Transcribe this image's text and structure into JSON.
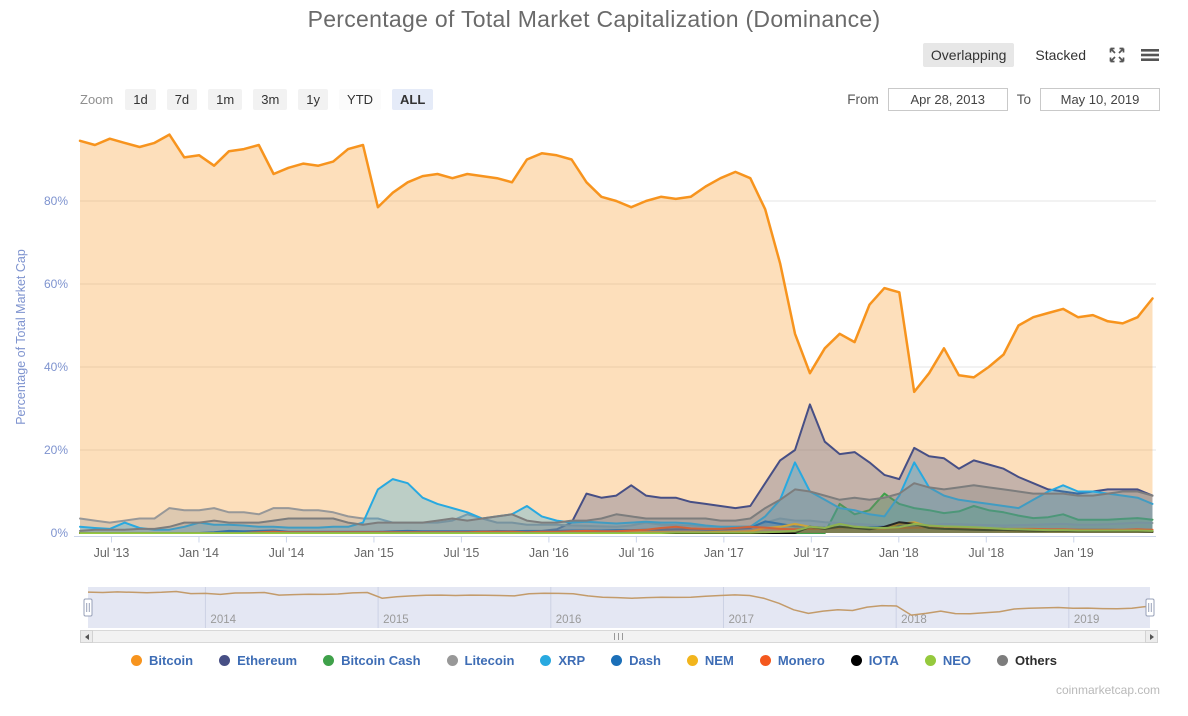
{
  "title": "Percentage of Total Market Capitalization (Dominance)",
  "view_toggle": {
    "overlapping": "Overlapping",
    "stacked": "Stacked",
    "selected": "Overlapping"
  },
  "zoom_bar": {
    "label": "Zoom",
    "buttons": [
      {
        "label": "1d",
        "variant": "default"
      },
      {
        "label": "7d",
        "variant": "default"
      },
      {
        "label": "1m",
        "variant": "default"
      },
      {
        "label": "3m",
        "variant": "default"
      },
      {
        "label": "1y",
        "variant": "default"
      },
      {
        "label": "YTD",
        "variant": "plain"
      },
      {
        "label": "ALL",
        "variant": "active"
      }
    ]
  },
  "date_range": {
    "from_label": "From",
    "from_value": "Apr 28, 2013",
    "to_label": "To",
    "to_value": "May 10, 2019"
  },
  "y_axis": {
    "title": "Percentage of Total Market Cap",
    "color": "#7e93cf",
    "ticks": [
      {
        "label": "0%",
        "v": 0
      },
      {
        "label": "20%",
        "v": 20
      },
      {
        "label": "40%",
        "v": 40
      },
      {
        "label": "60%",
        "v": 60
      },
      {
        "label": "80%",
        "v": 80
      }
    ]
  },
  "x_axis": {
    "color": "#666666",
    "ticks": [
      {
        "label": "Jul '13",
        "t": 2013.5
      },
      {
        "label": "Jan '14",
        "t": 2014.0
      },
      {
        "label": "Jul '14",
        "t": 2014.5
      },
      {
        "label": "Jan '15",
        "t": 2015.0
      },
      {
        "label": "Jul '15",
        "t": 2015.5
      },
      {
        "label": "Jan '16",
        "t": 2016.0
      },
      {
        "label": "Jul '16",
        "t": 2016.5
      },
      {
        "label": "Jan '17",
        "t": 2017.0
      },
      {
        "label": "Jul '17",
        "t": 2017.5
      },
      {
        "label": "Jan '18",
        "t": 2018.0
      },
      {
        "label": "Jul '18",
        "t": 2018.5
      },
      {
        "label": "Jan '19",
        "t": 2019.0
      }
    ]
  },
  "navigator": {
    "line_color": "#c39b6a",
    "bg_color": "#e4e7f3",
    "years": [
      {
        "label": "2014",
        "t": 2014
      },
      {
        "label": "2015",
        "t": 2015
      },
      {
        "label": "2016",
        "t": 2016
      },
      {
        "label": "2017",
        "t": 2017
      },
      {
        "label": "2018",
        "t": 2018
      },
      {
        "label": "2019",
        "t": 2019
      }
    ]
  },
  "legend": {
    "text_color": "#3e6db5"
  },
  "watermark": "coinmarketcap.com",
  "chart_data": {
    "type": "area",
    "title": "Percentage of Total Market Capitalization (Dominance)",
    "ylabel": "Percentage of Total Market Cap",
    "ylim": [
      0,
      100
    ],
    "grid": true,
    "legend_position": "bottom",
    "x_start": 2013.32,
    "x_step": 0.08514,
    "x_unit": "decimal_year_monthly_samples",
    "fill_opacity": 0.3,
    "series": [
      {
        "name": "Bitcoin",
        "color": "#f7941e",
        "values": [
          94.5,
          93.5,
          95,
          94,
          93,
          94,
          96,
          90.5,
          91,
          88.5,
          92,
          92.5,
          93.5,
          86.5,
          88,
          89,
          88.5,
          89.5,
          92.5,
          93.5,
          78.5,
          82,
          84.5,
          86,
          86.5,
          85.5,
          86.5,
          86,
          85.5,
          84.5,
          90,
          91.5,
          91,
          90,
          84.5,
          81,
          80,
          78.5,
          80,
          81,
          80.5,
          81,
          83.5,
          85.5,
          87,
          85.5,
          78,
          65,
          48,
          38.5,
          44.5,
          48,
          46,
          55,
          59,
          58,
          34,
          38.5,
          44.5,
          38,
          37.5,
          40,
          43,
          50,
          52,
          53,
          54,
          52,
          52.5,
          51,
          50.5,
          52,
          56.5
        ]
      },
      {
        "name": "Ethereum",
        "color": "#474f85",
        "values": [
          0,
          0,
          0,
          0,
          0,
          0,
          0,
          0,
          0,
          0,
          0,
          0,
          0,
          0,
          0,
          0,
          0,
          0,
          0,
          0,
          0,
          0,
          0,
          0,
          0,
          0,
          0,
          0.3,
          0.5,
          0.4,
          0.5,
          0.5,
          0.9,
          2.5,
          9.5,
          8.5,
          9,
          11.5,
          9,
          8.5,
          8.5,
          7.5,
          7,
          6.5,
          6,
          6.5,
          12,
          17.5,
          20,
          31,
          22,
          19,
          19.5,
          17,
          14,
          13,
          20.5,
          18.5,
          18,
          15.5,
          17.5,
          16.5,
          15.5,
          13.5,
          12,
          10.5,
          10,
          9.5,
          10,
          10.5,
          10.5,
          10.5,
          9
        ]
      },
      {
        "name": "Bitcoin Cash",
        "color": "#3fa14a",
        "values": [
          0,
          0,
          0,
          0,
          0,
          0,
          0,
          0,
          0,
          0,
          0,
          0,
          0,
          0,
          0,
          0,
          0,
          0,
          0,
          0,
          0,
          0,
          0,
          0,
          0,
          0,
          0,
          0,
          0,
          0,
          0,
          0,
          0,
          0,
          0,
          0,
          0,
          0,
          0,
          0,
          0,
          0,
          0,
          0,
          0,
          0,
          0,
          0,
          0,
          0,
          0,
          7,
          4.5,
          5.5,
          9.5,
          7,
          6,
          5.5,
          4.8,
          5.2,
          6.5,
          5.5,
          5,
          4.2,
          3.6,
          3.8,
          4.5,
          3.2,
          3.2,
          3.2,
          3.4,
          3.6,
          3.2
        ]
      },
      {
        "name": "Litecoin",
        "color": "#989898",
        "values": [
          3.5,
          3,
          2.5,
          3,
          3.5,
          3.5,
          6,
          5.5,
          5.5,
          6,
          5,
          5,
          4.5,
          6,
          6,
          5.5,
          5.5,
          5,
          4,
          3.5,
          3.5,
          2.5,
          2.5,
          2.5,
          2.5,
          3,
          4.5,
          3.5,
          2.5,
          2.5,
          2,
          2,
          2,
          1.8,
          1.7,
          1.6,
          1.5,
          1.8,
          2.5,
          2,
          1.9,
          1.8,
          1.6,
          1.5,
          1.5,
          1.6,
          2.5,
          3.5,
          3,
          3,
          2.6,
          2.4,
          2.2,
          2,
          1.6,
          1.6,
          1.8,
          2,
          2.2,
          2.1,
          2,
          1.9,
          1.8,
          1.9,
          2,
          2.1,
          2.2,
          2,
          2,
          2.1,
          2.3,
          2.5,
          2.4
        ]
      },
      {
        "name": "XRP",
        "color": "#28a9e0",
        "values": [
          1.5,
          1.2,
          1,
          2.5,
          1.2,
          0.8,
          0.8,
          1.5,
          2.5,
          2,
          2,
          1.8,
          1.5,
          1.5,
          1.3,
          1.3,
          1.3,
          1.5,
          1.5,
          2.5,
          10.5,
          13,
          12,
          8.5,
          7,
          6,
          5,
          3.5,
          4,
          4.5,
          6.5,
          4,
          3,
          2.5,
          2.7,
          2.5,
          2.3,
          2.5,
          2.7,
          2.5,
          2.5,
          2.3,
          1.8,
          1.5,
          1.5,
          1.5,
          4,
          8,
          17,
          10,
          8,
          6,
          5.5,
          4.5,
          4,
          9,
          17,
          11,
          9,
          8,
          7.5,
          7,
          6.5,
          6,
          8,
          10,
          11.5,
          10,
          10,
          9.5,
          9,
          8.5,
          7
        ]
      },
      {
        "name": "Dash",
        "color": "#1b6fb8",
        "values": [
          0,
          0,
          0,
          0,
          0,
          0,
          0,
          0,
          0,
          0.2,
          0.5,
          0.4,
          0.5,
          0.6,
          0.3,
          0.3,
          0.3,
          0.3,
          0.3,
          0.3,
          0.3,
          0.4,
          0.5,
          0.4,
          0.4,
          0.4,
          0.4,
          0.4,
          0.4,
          0.4,
          0.4,
          0.4,
          0.5,
          0.6,
          0.6,
          0.6,
          0.7,
          0.7,
          0.8,
          0.8,
          0.9,
          0.9,
          0.8,
          0.8,
          1,
          1.2,
          2.8,
          2.2,
          1.6,
          1.5,
          1.3,
          1.2,
          1.3,
          1.4,
          1.5,
          1.6,
          1.6,
          1.4,
          1.3,
          1.2,
          1.1,
          1,
          1,
          0.9,
          0.9,
          0.8,
          0.8,
          0.8,
          0.8,
          0.8,
          0.7,
          0.7,
          0.6
        ]
      },
      {
        "name": "NEM",
        "color": "#f2b51d",
        "values": [
          0,
          0,
          0,
          0,
          0,
          0,
          0,
          0,
          0,
          0,
          0,
          0,
          0,
          0,
          0,
          0,
          0,
          0,
          0,
          0,
          0,
          0,
          0.1,
          0.1,
          0.1,
          0.1,
          0.1,
          0.1,
          0.1,
          0.1,
          0.1,
          0.1,
          0.1,
          0.1,
          0.1,
          0.2,
          0.2,
          0.2,
          0.2,
          0.2,
          0.2,
          0.2,
          0.2,
          0.3,
          0.3,
          0.4,
          1.2,
          1.5,
          2.2,
          1.5,
          1.2,
          1.4,
          1.2,
          1,
          1,
          2.2,
          2.6,
          1.6,
          1.2,
          1.1,
          0.9,
          0.7,
          0.6,
          0.5,
          0.5,
          0.4,
          0.4,
          0.4,
          0.4,
          0.4,
          0.4,
          0.4,
          0.3
        ]
      },
      {
        "name": "Monero",
        "color": "#f4581e",
        "values": [
          0,
          0,
          0,
          0,
          0,
          0,
          0,
          0,
          0,
          0,
          0,
          0,
          0.2,
          0.3,
          0.2,
          0.2,
          0.2,
          0.2,
          0.2,
          0.2,
          0.2,
          0.2,
          0.2,
          0.2,
          0.2,
          0.2,
          0.2,
          0.3,
          0.3,
          0.3,
          0.2,
          0.3,
          0.3,
          0.4,
          0.5,
          0.4,
          0.4,
          0.6,
          0.8,
          1.2,
          1.5,
          1.1,
          1,
          1,
          1.2,
          1.5,
          1.3,
          1,
          0.9,
          1,
          1,
          1.3,
          1.5,
          1.2,
          1.1,
          1.2,
          1.3,
          1.4,
          1.3,
          1.3,
          1.2,
          1.1,
          1,
          1,
          1,
          0.9,
          0.9,
          0.8,
          0.8,
          0.8,
          0.8,
          0.9,
          0.8
        ]
      },
      {
        "name": "IOTA",
        "color": "#000000",
        "values": [
          0,
          0,
          0,
          0,
          0,
          0,
          0,
          0,
          0,
          0,
          0,
          0,
          0,
          0,
          0,
          0,
          0,
          0,
          0,
          0,
          0,
          0,
          0,
          0,
          0,
          0,
          0,
          0,
          0,
          0,
          0,
          0,
          0,
          0,
          0,
          0,
          0,
          0,
          0,
          0,
          0,
          0,
          0,
          0,
          0,
          0,
          0,
          0,
          0,
          1.5,
          1,
          1.5,
          1.2,
          0.9,
          1.5,
          2.6,
          2.2,
          1.2,
          1,
          0.9,
          0.8,
          0.7,
          0.7,
          0.6,
          0.5,
          0.5,
          0.5,
          0.4,
          0.4,
          0.4,
          0.4,
          0.4,
          0.3
        ]
      },
      {
        "name": "NEO",
        "color": "#95c93d",
        "values": [
          0,
          0,
          0,
          0,
          0,
          0,
          0,
          0,
          0,
          0,
          0,
          0,
          0,
          0,
          0,
          0,
          0,
          0,
          0,
          0,
          0,
          0,
          0,
          0,
          0,
          0,
          0,
          0,
          0,
          0,
          0,
          0,
          0,
          0,
          0,
          0,
          0,
          0,
          0,
          0,
          0.1,
          0.1,
          0.1,
          0.1,
          0.1,
          0.1,
          0.2,
          0.3,
          0.5,
          1.5,
          1.2,
          2.2,
          1.5,
          1.3,
          1.2,
          1.4,
          2.2,
          1.8,
          1.6,
          1.5,
          1.4,
          1.2,
          1,
          0.9,
          0.8,
          0.7,
          0.7,
          0.6,
          0.6,
          0.6,
          0.6,
          0.6,
          0.5
        ]
      },
      {
        "name": "Others",
        "color": "#7d7d7d",
        "legend_label_color": "#2d2d2d",
        "values": [
          0.5,
          0.8,
          0.8,
          0.8,
          1,
          1,
          1.5,
          2.5,
          2.5,
          3,
          2.5,
          2.5,
          2.5,
          3,
          3.5,
          3.5,
          3.5,
          3.5,
          2.5,
          2,
          2.5,
          2.5,
          2.5,
          2.5,
          3,
          3.5,
          3,
          3.5,
          4,
          4.5,
          3,
          2.5,
          2.5,
          3,
          3,
          3.5,
          4.5,
          4,
          3.5,
          3.5,
          3.5,
          3.5,
          3.5,
          3,
          3,
          3.5,
          6,
          8,
          10.5,
          10,
          9,
          8,
          8.5,
          8,
          8.5,
          9.5,
          12,
          11,
          10.5,
          11,
          11.5,
          11,
          10.5,
          10,
          9.5,
          9.5,
          9.5,
          9,
          9,
          9.5,
          10,
          10,
          9
        ]
      }
    ]
  }
}
